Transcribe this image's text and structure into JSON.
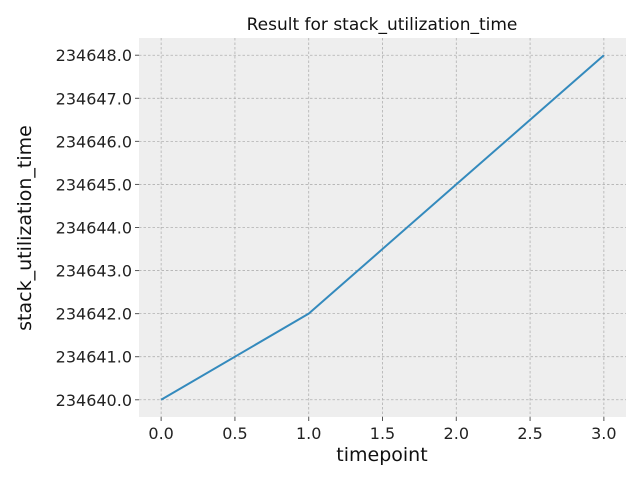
{
  "chart_data": {
    "type": "line",
    "title": "Result for stack_utilization_time",
    "xlabel": "timepoint",
    "ylabel": "stack_utilization_time",
    "x_ticks": [
      "0.0",
      "0.5",
      "1.0",
      "1.5",
      "2.0",
      "2.5",
      "3.0"
    ],
    "y_ticks": [
      "234640.0",
      "234641.0",
      "234642.0",
      "234643.0",
      "234644.0",
      "234645.0",
      "234646.0",
      "234647.0",
      "234648.0"
    ],
    "xlim": [
      -0.15,
      3.15
    ],
    "ylim": [
      234639.6,
      234648.4
    ],
    "grid": true,
    "series": [
      {
        "x": [
          0,
          1,
          2,
          3
        ],
        "values": [
          234640.0,
          234642.0,
          234645.0,
          234648.0
        ],
        "color": "#348abd"
      }
    ],
    "colors": {
      "plot_background": "#eeeeee",
      "grid": "#b0b0b0",
      "line": "#348abd"
    }
  }
}
